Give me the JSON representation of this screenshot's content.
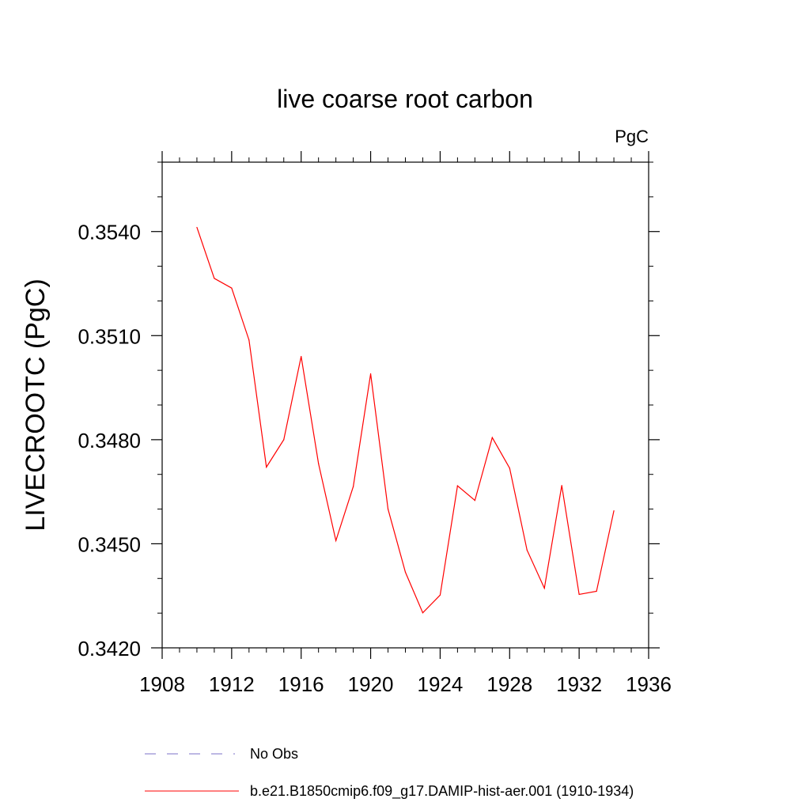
{
  "chart_data": {
    "type": "line",
    "title": "live coarse root carbon",
    "units_label": "PgC",
    "xlabel": "",
    "ylabel": "LIVECROOTC  (PgC)",
    "xlim": [
      1908,
      1936
    ],
    "ylim": [
      0.342,
      0.356
    ],
    "xticks": [
      1908,
      1912,
      1916,
      1920,
      1924,
      1928,
      1932,
      1936
    ],
    "xtick_labels": [
      "1908",
      "1912",
      "1916",
      "1920",
      "1924",
      "1928",
      "1932",
      "1936"
    ],
    "yticks": [
      0.342,
      0.345,
      0.348,
      0.351,
      0.354
    ],
    "ytick_labels": [
      "0.3420",
      "0.3450",
      "0.3480",
      "0.3510",
      "0.3540"
    ],
    "grid": false,
    "legend_position": "bottom",
    "series": [
      {
        "name": "b.e21.B1850cmip6.f09_g17.DAMIP-hist-aer.001 (1910-1934)",
        "color": "#ff0000",
        "style": "solid",
        "x": [
          1910,
          1911,
          1912,
          1913,
          1914,
          1915,
          1916,
          1917,
          1918,
          1919,
          1920,
          1921,
          1922,
          1923,
          1924,
          1925,
          1926,
          1927,
          1928,
          1929,
          1930,
          1931,
          1932,
          1933,
          1934
        ],
        "y": [
          0.35412,
          0.35265,
          0.35237,
          0.35087,
          0.34721,
          0.348,
          0.3504,
          0.34731,
          0.34509,
          0.34665,
          0.3499,
          0.346,
          0.34418,
          0.34301,
          0.34352,
          0.34667,
          0.34625,
          0.34806,
          0.34718,
          0.34482,
          0.34372,
          0.34668,
          0.34354,
          0.34363,
          0.34595
        ]
      }
    ],
    "legend": [
      {
        "label": "No Obs",
        "color": "#7b72c8",
        "style": "dashed"
      },
      {
        "label": "b.e21.B1850cmip6.f09_g17.DAMIP-hist-aer.001 (1910-1934)",
        "color": "#ff0000",
        "style": "solid"
      }
    ]
  }
}
